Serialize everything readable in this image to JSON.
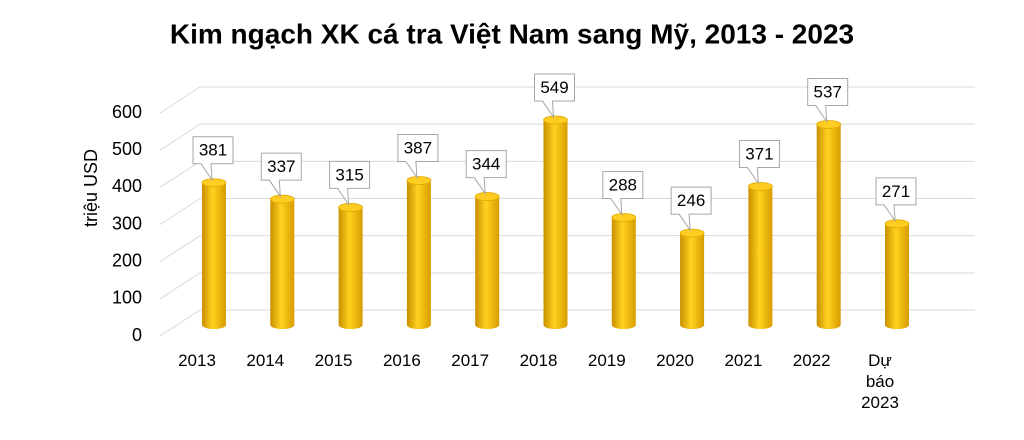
{
  "chart_data": {
    "type": "bar",
    "title": "Kim ngạch XK cá tra Việt Nam sang Mỹ, 2013 - 2023",
    "y_label": "triệu USD",
    "categories": [
      "2013",
      "2014",
      "2015",
      "2016",
      "2017",
      "2018",
      "2019",
      "2020",
      "2021",
      "2022",
      "Dự báo 2023"
    ],
    "values": [
      381,
      337,
      315,
      387,
      344,
      549,
      288,
      246,
      371,
      537,
      271
    ],
    "color": "#f2b705",
    "ylim": [
      0,
      600
    ],
    "yticks": [
      0,
      100,
      200,
      300,
      400,
      500,
      600
    ],
    "grid": true
  }
}
